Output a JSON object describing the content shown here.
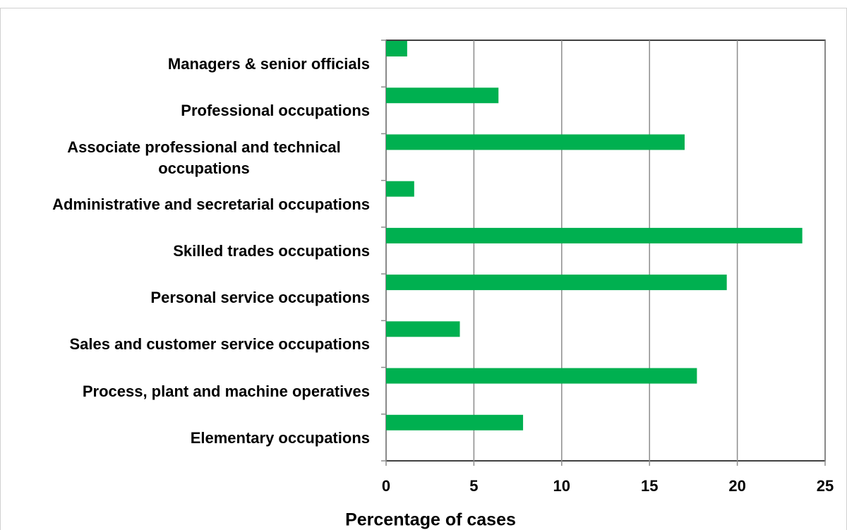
{
  "chart_data": {
    "type": "bar",
    "orientation": "horizontal",
    "x_label": "Percentage of cases",
    "categories": [
      "Managers & senior officials",
      "Professional occupations",
      "Associate professional and technical occupations",
      "Administrative and secretarial occupations",
      "Skilled trades occupations",
      "Personal service occupations",
      "Sales and customer service occupations",
      "Process, plant and machine operatives",
      "Elementary occupations"
    ],
    "values": [
      1.2,
      6.4,
      17.0,
      1.6,
      23.7,
      19.4,
      4.2,
      17.7,
      7.8
    ],
    "color": "#00b050",
    "xlim": [
      0,
      25
    ],
    "xticks": [
      0,
      5,
      10,
      15,
      20,
      25
    ],
    "grid": true
  }
}
